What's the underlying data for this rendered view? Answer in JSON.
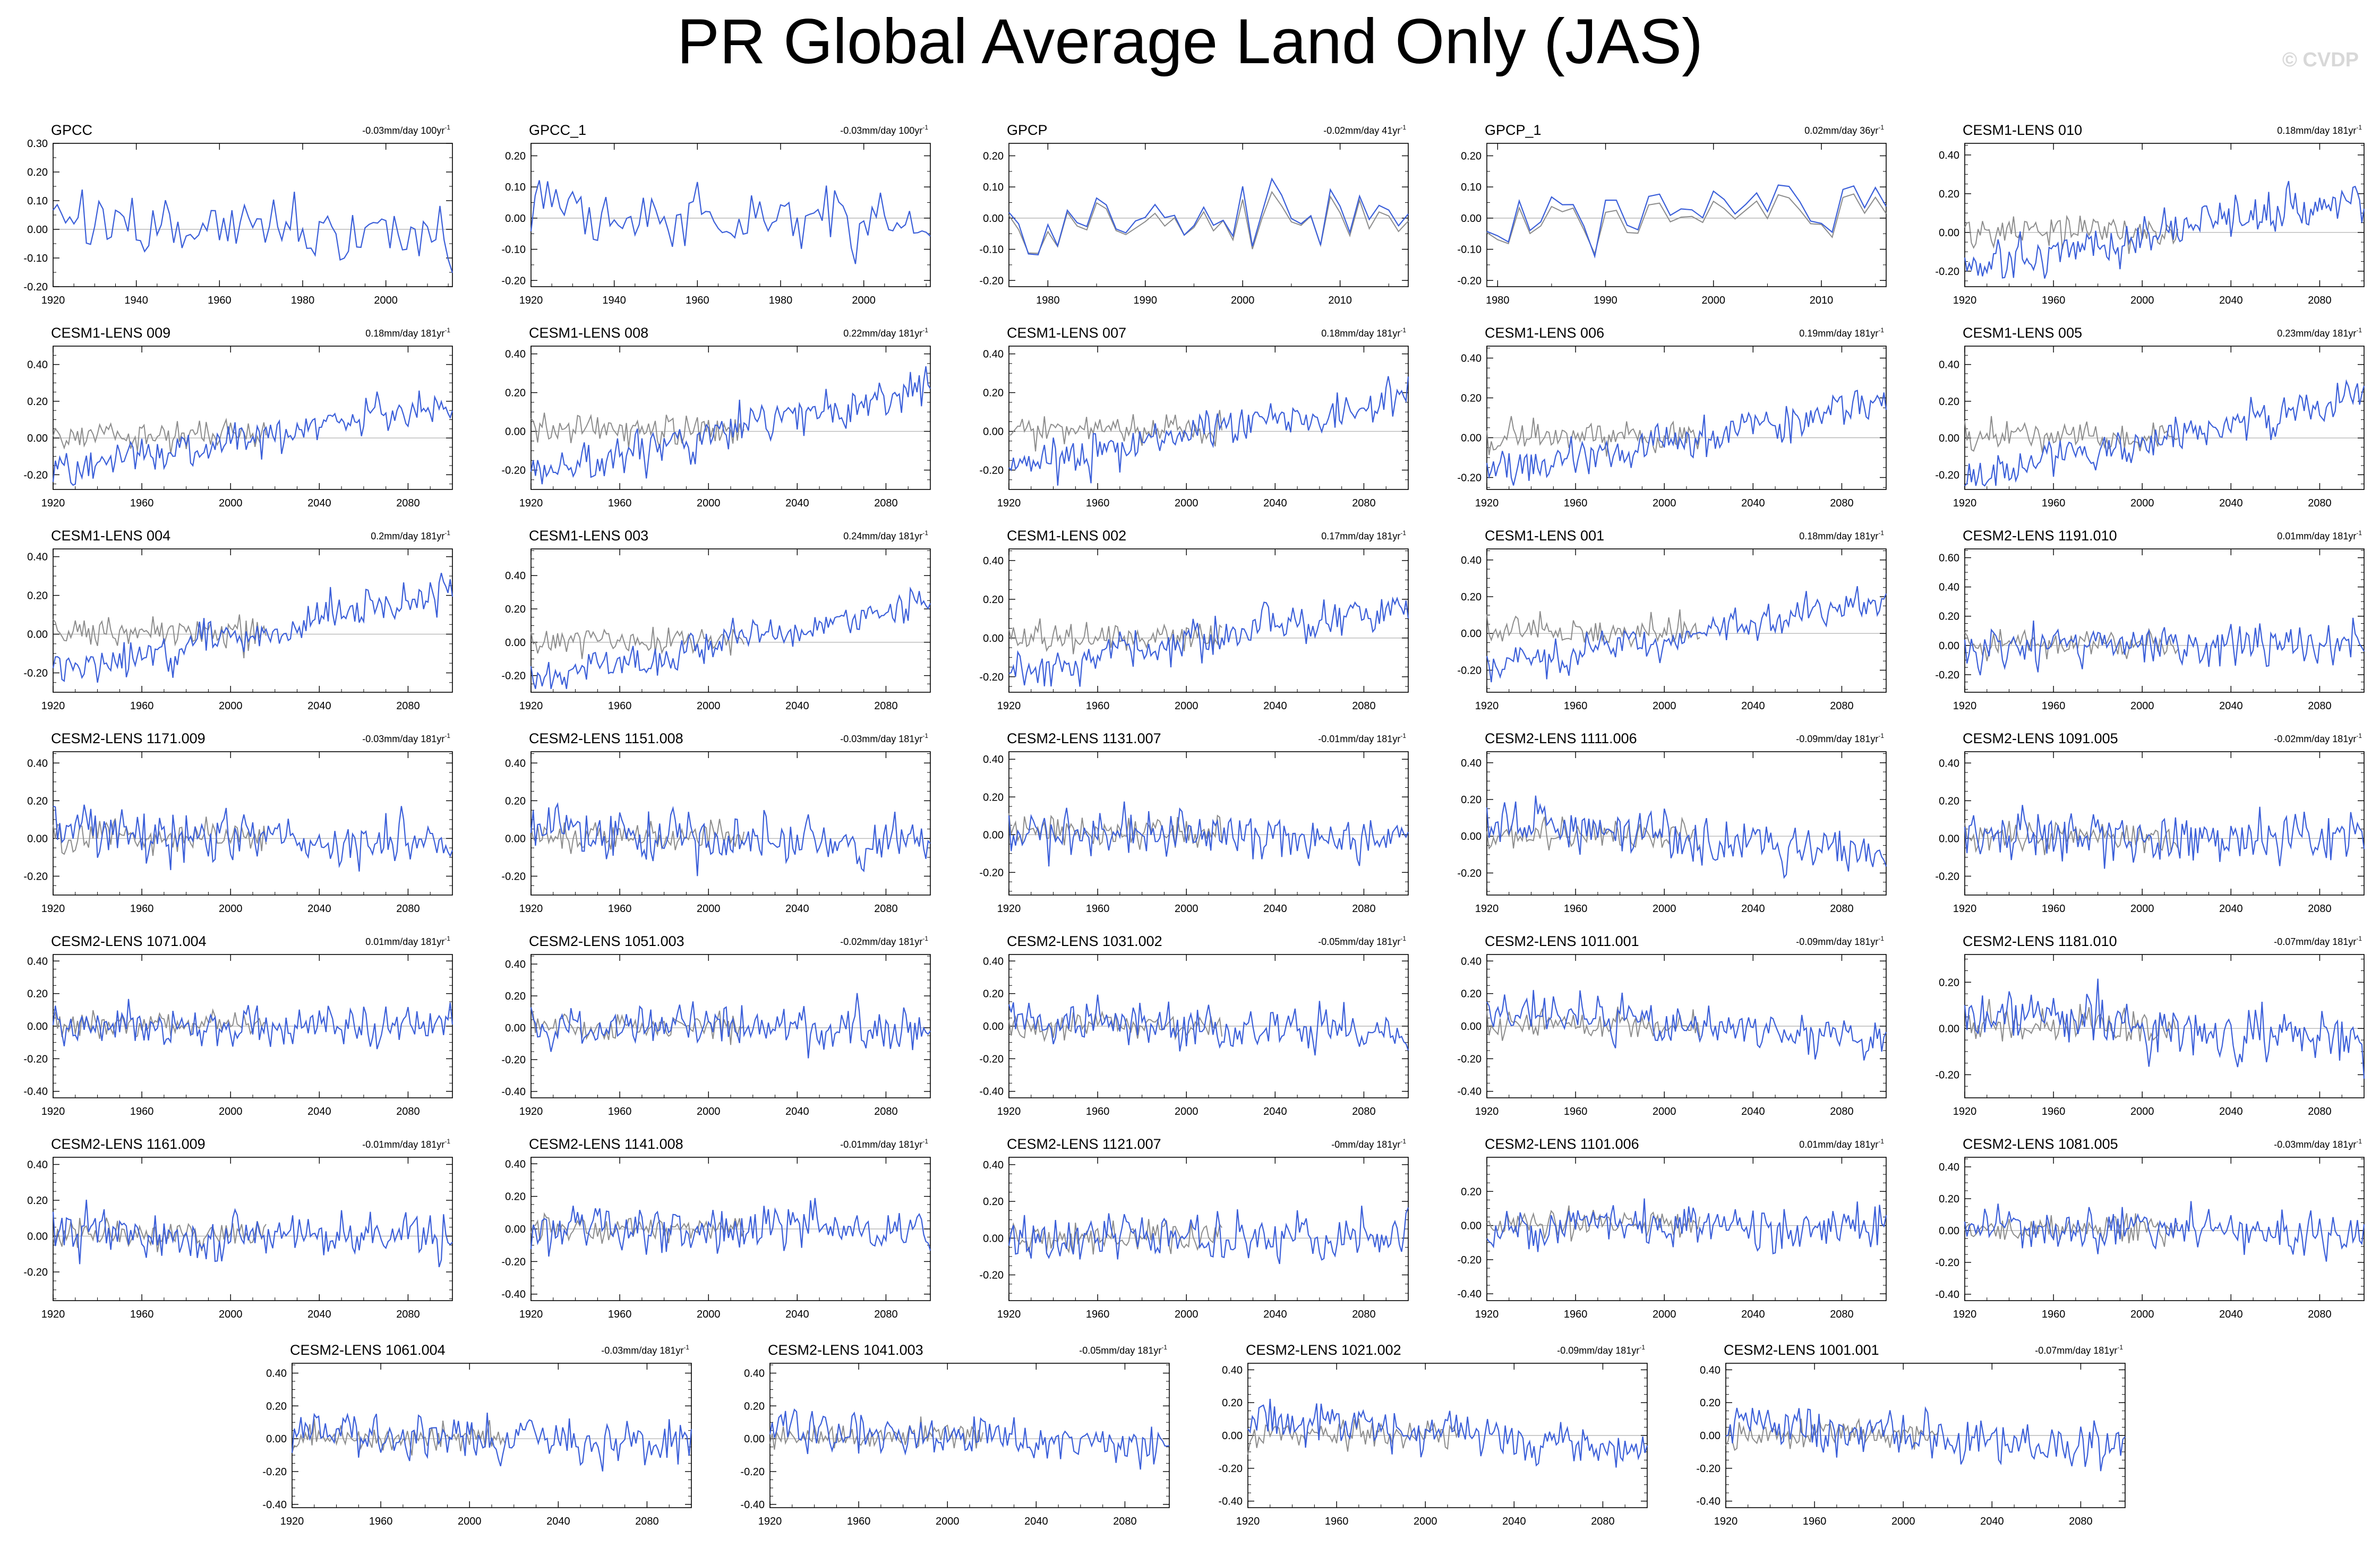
{
  "title": "PR Global Average Land Only (JAS)",
  "watermark": "© CVDP",
  "colors": {
    "model": "#3b5fd9",
    "obs": "#8c8c8c",
    "zero": "#b8b8b8",
    "axis": "#000000"
  },
  "chart_data": [
    {
      "type": "line",
      "title": "GPCC",
      "trend": "-0.03mm/day 100yr",
      "x_range": [
        1920,
        2016
      ],
      "xticks": [
        1920,
        1940,
        1960,
        1980,
        2000
      ],
      "ylim": [
        -0.2,
        0.3
      ],
      "yticks": [
        "-0.20",
        "-0.10",
        "0.00",
        "0.10",
        "0.20",
        "0.30"
      ],
      "amp": 0.1,
      "trend_total": -0.03,
      "obs_overlay": false,
      "seed": 1
    },
    {
      "type": "line",
      "title": "GPCC_1",
      "trend": "-0.03mm/day 100yr",
      "x_range": [
        1920,
        2016
      ],
      "xticks": [
        1920,
        1940,
        1960,
        1980,
        2000
      ],
      "ylim": [
        -0.22,
        0.24
      ],
      "yticks": [
        "-0.20",
        "-0.10",
        "0.00",
        "0.10",
        "0.20"
      ],
      "amp": 0.1,
      "trend_total": -0.03,
      "obs_overlay": false,
      "seed": 2
    },
    {
      "type": "line",
      "title": "GPCP",
      "trend": "-0.02mm/day 41yr",
      "x_range": [
        1976,
        2017
      ],
      "xticks": [
        1980,
        1990,
        2000,
        2010
      ],
      "ylim": [
        -0.22,
        0.24
      ],
      "yticks": [
        "-0.20",
        "-0.10",
        "0.00",
        "0.10",
        "0.20"
      ],
      "amp": 0.11,
      "trend_total": -0.02,
      "obs_overlay": true,
      "obs_close": true,
      "seed": 3
    },
    {
      "type": "line",
      "title": "GPCP_1",
      "trend": "0.02mm/day 36yr",
      "x_range": [
        1979,
        2016
      ],
      "xticks": [
        1980,
        1990,
        2000,
        2010
      ],
      "ylim": [
        -0.22,
        0.24
      ],
      "yticks": [
        "-0.20",
        "-0.10",
        "0.00",
        "0.10",
        "0.20"
      ],
      "amp": 0.11,
      "trend_total": 0.02,
      "obs_overlay": true,
      "obs_close": true,
      "seed": 4
    },
    {
      "type": "line",
      "title": "CESM1-LENS 010",
      "trend": "0.18mm/day 181yr",
      "x_range": [
        1920,
        2100
      ],
      "xticks": [
        1920,
        1960,
        2000,
        2040,
        2080
      ],
      "ylim": [
        -0.28,
        0.46
      ],
      "yticks": [
        "-0.20",
        "0.00",
        "0.20",
        "0.40"
      ],
      "amp": 0.1,
      "trend_total": 0.18,
      "obs_overlay": true,
      "seed": 5
    },
    {
      "type": "line",
      "title": "CESM1-LENS 009",
      "trend": "0.18mm/day 181yr",
      "x_range": [
        1920,
        2100
      ],
      "xticks": [
        1920,
        1960,
        2000,
        2040,
        2080
      ],
      "ylim": [
        -0.28,
        0.5
      ],
      "yticks": [
        "-0.20",
        "0.00",
        "0.20",
        "0.40"
      ],
      "amp": 0.1,
      "trend_total": 0.18,
      "obs_overlay": true,
      "seed": 6
    },
    {
      "type": "line",
      "title": "CESM1-LENS 008",
      "trend": "0.22mm/day 181yr",
      "x_range": [
        1920,
        2100
      ],
      "xticks": [
        1920,
        1960,
        2000,
        2040,
        2080
      ],
      "ylim": [
        -0.3,
        0.44
      ],
      "yticks": [
        "-0.20",
        "0.00",
        "0.20",
        "0.40"
      ],
      "amp": 0.1,
      "trend_total": 0.22,
      "obs_overlay": true,
      "seed": 7
    },
    {
      "type": "line",
      "title": "CESM1-LENS 007",
      "trend": "0.18mm/day 181yr",
      "x_range": [
        1920,
        2100
      ],
      "xticks": [
        1920,
        1960,
        2000,
        2040,
        2080
      ],
      "ylim": [
        -0.3,
        0.44
      ],
      "yticks": [
        "-0.20",
        "0.00",
        "0.20",
        "0.40"
      ],
      "amp": 0.1,
      "trend_total": 0.18,
      "obs_overlay": true,
      "seed": 8
    },
    {
      "type": "line",
      "title": "CESM1-LENS 006",
      "trend": "0.19mm/day 181yr",
      "x_range": [
        1920,
        2100
      ],
      "xticks": [
        1920,
        1960,
        2000,
        2040,
        2080
      ],
      "ylim": [
        -0.26,
        0.46
      ],
      "yticks": [
        "-0.20",
        "0.00",
        "0.20",
        "0.40"
      ],
      "amp": 0.1,
      "trend_total": 0.19,
      "obs_overlay": true,
      "seed": 9
    },
    {
      "type": "line",
      "title": "CESM1-LENS 005",
      "trend": "0.23mm/day 181yr",
      "x_range": [
        1920,
        2100
      ],
      "xticks": [
        1920,
        1960,
        2000,
        2040,
        2080
      ],
      "ylim": [
        -0.28,
        0.5
      ],
      "yticks": [
        "-0.20",
        "0.00",
        "0.20",
        "0.40"
      ],
      "amp": 0.1,
      "trend_total": 0.23,
      "obs_overlay": true,
      "seed": 10
    },
    {
      "type": "line",
      "title": "CESM1-LENS 004",
      "trend": "0.2mm/day 181yr",
      "x_range": [
        1920,
        2100
      ],
      "xticks": [
        1920,
        1960,
        2000,
        2040,
        2080
      ],
      "ylim": [
        -0.3,
        0.44
      ],
      "yticks": [
        "-0.20",
        "0.00",
        "0.20",
        "0.40"
      ],
      "amp": 0.1,
      "trend_total": 0.2,
      "obs_overlay": true,
      "seed": 11
    },
    {
      "type": "line",
      "title": "CESM1-LENS 003",
      "trend": "0.24mm/day 181yr",
      "x_range": [
        1920,
        2100
      ],
      "xticks": [
        1920,
        1960,
        2000,
        2040,
        2080
      ],
      "ylim": [
        -0.3,
        0.56
      ],
      "yticks": [
        "-0.20",
        "0.00",
        "0.20",
        "0.40"
      ],
      "amp": 0.1,
      "trend_total": 0.24,
      "obs_overlay": true,
      "seed": 12
    },
    {
      "type": "line",
      "title": "CESM1-LENS 002",
      "trend": "0.17mm/day 181yr",
      "x_range": [
        1920,
        2100
      ],
      "xticks": [
        1920,
        1960,
        2000,
        2040,
        2080
      ],
      "ylim": [
        -0.28,
        0.46
      ],
      "yticks": [
        "-0.20",
        "0.00",
        "0.20",
        "0.40"
      ],
      "amp": 0.1,
      "trend_total": 0.17,
      "obs_overlay": true,
      "seed": 13
    },
    {
      "type": "line",
      "title": "CESM1-LENS 001",
      "trend": "0.18mm/day 181yr",
      "x_range": [
        1920,
        2100
      ],
      "xticks": [
        1920,
        1960,
        2000,
        2040,
        2080
      ],
      "ylim": [
        -0.32,
        0.46
      ],
      "yticks": [
        "-0.20",
        "0.00",
        "0.20",
        "0.40"
      ],
      "amp": 0.1,
      "trend_total": 0.18,
      "obs_overlay": true,
      "seed": 14
    },
    {
      "type": "line",
      "title": "CESM2-LENS 1191.010",
      "trend": "0.01mm/day 181yr",
      "x_range": [
        1920,
        2100
      ],
      "xticks": [
        1920,
        1960,
        2000,
        2040,
        2080
      ],
      "ylim": [
        -0.32,
        0.66
      ],
      "yticks": [
        "-0.20",
        "0.00",
        "0.20",
        "0.40",
        "0.60"
      ],
      "amp": 0.13,
      "trend_total": 0.01,
      "obs_overlay": true,
      "seed": 15
    },
    {
      "type": "line",
      "title": "CESM2-LENS 1171.009",
      "trend": "-0.03mm/day 181yr",
      "x_range": [
        1920,
        2100
      ],
      "xticks": [
        1920,
        1960,
        2000,
        2040,
        2080
      ],
      "ylim": [
        -0.3,
        0.46
      ],
      "yticks": [
        "-0.20",
        "0.00",
        "0.20",
        "0.40"
      ],
      "amp": 0.13,
      "trend_total": -0.03,
      "obs_overlay": true,
      "seed": 16
    },
    {
      "type": "line",
      "title": "CESM2-LENS 1151.008",
      "trend": "-0.03mm/day 181yr",
      "x_range": [
        1920,
        2100
      ],
      "xticks": [
        1920,
        1960,
        2000,
        2040,
        2080
      ],
      "ylim": [
        -0.3,
        0.46
      ],
      "yticks": [
        "-0.20",
        "0.00",
        "0.20",
        "0.40"
      ],
      "amp": 0.13,
      "trend_total": -0.03,
      "obs_overlay": true,
      "seed": 17
    },
    {
      "type": "line",
      "title": "CESM2-LENS 1131.007",
      "trend": "-0.01mm/day 181yr",
      "x_range": [
        1920,
        2100
      ],
      "xticks": [
        1920,
        1960,
        2000,
        2040,
        2080
      ],
      "ylim": [
        -0.32,
        0.44
      ],
      "yticks": [
        "-0.20",
        "0.00",
        "0.20",
        "0.40"
      ],
      "amp": 0.13,
      "trend_total": -0.01,
      "obs_overlay": true,
      "seed": 18
    },
    {
      "type": "line",
      "title": "CESM2-LENS 1111.006",
      "trend": "-0.09mm/day 181yr",
      "x_range": [
        1920,
        2100
      ],
      "xticks": [
        1920,
        1960,
        2000,
        2040,
        2080
      ],
      "ylim": [
        -0.32,
        0.46
      ],
      "yticks": [
        "-0.20",
        "0.00",
        "0.20",
        "0.40"
      ],
      "amp": 0.13,
      "trend_total": -0.09,
      "obs_overlay": true,
      "seed": 19
    },
    {
      "type": "line",
      "title": "CESM2-LENS 1091.005",
      "trend": "-0.02mm/day 181yr",
      "x_range": [
        1920,
        2100
      ],
      "xticks": [
        1920,
        1960,
        2000,
        2040,
        2080
      ],
      "ylim": [
        -0.3,
        0.46
      ],
      "yticks": [
        "-0.20",
        "0.00",
        "0.20",
        "0.40"
      ],
      "amp": 0.13,
      "trend_total": -0.02,
      "obs_overlay": true,
      "seed": 20
    },
    {
      "type": "line",
      "title": "CESM2-LENS 1071.004",
      "trend": "0.01mm/day 181yr",
      "x_range": [
        1920,
        2100
      ],
      "xticks": [
        1920,
        1960,
        2000,
        2040,
        2080
      ],
      "ylim": [
        -0.44,
        0.44
      ],
      "yticks": [
        "-0.40",
        "-0.20",
        "0.00",
        "0.20",
        "0.40"
      ],
      "amp": 0.13,
      "trend_total": 0.01,
      "obs_overlay": true,
      "seed": 21
    },
    {
      "type": "line",
      "title": "CESM2-LENS 1051.003",
      "trend": "-0.02mm/day 181yr",
      "x_range": [
        1920,
        2100
      ],
      "xticks": [
        1920,
        1960,
        2000,
        2040,
        2080
      ],
      "ylim": [
        -0.44,
        0.46
      ],
      "yticks": [
        "-0.40",
        "-0.20",
        "0.00",
        "0.20",
        "0.40"
      ],
      "amp": 0.13,
      "trend_total": -0.02,
      "obs_overlay": true,
      "seed": 22
    },
    {
      "type": "line",
      "title": "CESM2-LENS 1031.002",
      "trend": "-0.05mm/day 181yr",
      "x_range": [
        1920,
        2100
      ],
      "xticks": [
        1920,
        1960,
        2000,
        2040,
        2080
      ],
      "ylim": [
        -0.44,
        0.44
      ],
      "yticks": [
        "-0.40",
        "-0.20",
        "0.00",
        "0.20",
        "0.40"
      ],
      "amp": 0.13,
      "trend_total": -0.05,
      "obs_overlay": true,
      "seed": 23
    },
    {
      "type": "line",
      "title": "CESM2-LENS 1011.001",
      "trend": "-0.09mm/day 181yr",
      "x_range": [
        1920,
        2100
      ],
      "xticks": [
        1920,
        1960,
        2000,
        2040,
        2080
      ],
      "ylim": [
        -0.44,
        0.44
      ],
      "yticks": [
        "-0.40",
        "-0.20",
        "0.00",
        "0.20",
        "0.40"
      ],
      "amp": 0.13,
      "trend_total": -0.09,
      "obs_overlay": true,
      "seed": 24
    },
    {
      "type": "line",
      "title": "CESM2-LENS 1181.010",
      "trend": "-0.07mm/day 181yr",
      "x_range": [
        1920,
        2100
      ],
      "xticks": [
        1920,
        1960,
        2000,
        2040,
        2080
      ],
      "ylim": [
        -0.3,
        0.32
      ],
      "yticks": [
        "-0.20",
        "0.00",
        "0.20"
      ],
      "amp": 0.12,
      "trend_total": -0.07,
      "obs_overlay": true,
      "seed": 25
    },
    {
      "type": "line",
      "title": "CESM2-LENS 1161.009",
      "trend": "-0.01mm/day 181yr",
      "x_range": [
        1920,
        2100
      ],
      "xticks": [
        1920,
        1960,
        2000,
        2040,
        2080
      ],
      "ylim": [
        -0.36,
        0.44
      ],
      "yticks": [
        "-0.20",
        "0.00",
        "0.20",
        "0.40"
      ],
      "amp": 0.13,
      "trend_total": -0.01,
      "obs_overlay": true,
      "seed": 26
    },
    {
      "type": "line",
      "title": "CESM2-LENS 1141.008",
      "trend": "-0.01mm/day 181yr",
      "x_range": [
        1920,
        2100
      ],
      "xticks": [
        1920,
        1960,
        2000,
        2040,
        2080
      ],
      "ylim": [
        -0.44,
        0.44
      ],
      "yticks": [
        "-0.40",
        "-0.20",
        "0.00",
        "0.20",
        "0.40"
      ],
      "amp": 0.13,
      "trend_total": -0.01,
      "obs_overlay": true,
      "seed": 27
    },
    {
      "type": "line",
      "title": "CESM2-LENS 1121.007",
      "trend": "-0mm/day 181yr",
      "x_range": [
        1920,
        2100
      ],
      "xticks": [
        1920,
        1960,
        2000,
        2040,
        2080
      ],
      "ylim": [
        -0.34,
        0.44
      ],
      "yticks": [
        "-0.20",
        "0.00",
        "0.20",
        "0.40"
      ],
      "amp": 0.13,
      "trend_total": 0.0,
      "obs_overlay": true,
      "seed": 28
    },
    {
      "type": "line",
      "title": "CESM2-LENS 1101.006",
      "trend": "0.01mm/day 181yr",
      "x_range": [
        1920,
        2100
      ],
      "xticks": [
        1920,
        1960,
        2000,
        2040,
        2080
      ],
      "ylim": [
        -0.44,
        0.4
      ],
      "yticks": [
        "-0.40",
        "-0.20",
        "0.00",
        "0.20"
      ],
      "amp": 0.13,
      "trend_total": 0.01,
      "obs_overlay": true,
      "seed": 29
    },
    {
      "type": "line",
      "title": "CESM2-LENS 1081.005",
      "trend": "-0.03mm/day 181yr",
      "x_range": [
        1920,
        2100
      ],
      "xticks": [
        1920,
        1960,
        2000,
        2040,
        2080
      ],
      "ylim": [
        -0.44,
        0.46
      ],
      "yticks": [
        "-0.40",
        "-0.20",
        "0.00",
        "0.20",
        "0.40"
      ],
      "amp": 0.13,
      "trend_total": -0.03,
      "obs_overlay": true,
      "seed": 30
    },
    {
      "type": "line",
      "title": "CESM2-LENS 1061.004",
      "trend": "-0.03mm/day 181yr",
      "x_range": [
        1920,
        2100
      ],
      "xticks": [
        1920,
        1960,
        2000,
        2040,
        2080
      ],
      "ylim": [
        -0.42,
        0.46
      ],
      "yticks": [
        "-0.40",
        "-0.20",
        "0.00",
        "0.20",
        "0.40"
      ],
      "amp": 0.13,
      "trend_total": -0.03,
      "obs_overlay": true,
      "seed": 31
    },
    {
      "type": "line",
      "title": "CESM2-LENS 1041.003",
      "trend": "-0.05mm/day 181yr",
      "x_range": [
        1920,
        2100
      ],
      "xticks": [
        1920,
        1960,
        2000,
        2040,
        2080
      ],
      "ylim": [
        -0.42,
        0.46
      ],
      "yticks": [
        "-0.40",
        "-0.20",
        "0.00",
        "0.20",
        "0.40"
      ],
      "amp": 0.13,
      "trend_total": -0.05,
      "obs_overlay": true,
      "seed": 32
    },
    {
      "type": "line",
      "title": "CESM2-LENS 1021.002",
      "trend": "-0.09mm/day 181yr",
      "x_range": [
        1920,
        2100
      ],
      "xticks": [
        1920,
        1960,
        2000,
        2040,
        2080
      ],
      "ylim": [
        -0.44,
        0.44
      ],
      "yticks": [
        "-0.40",
        "-0.20",
        "0.00",
        "0.20",
        "0.40"
      ],
      "amp": 0.13,
      "trend_total": -0.09,
      "obs_overlay": true,
      "seed": 33
    },
    {
      "type": "line",
      "title": "CESM2-LENS 1001.001",
      "trend": "-0.07mm/day 181yr",
      "x_range": [
        1920,
        2100
      ],
      "xticks": [
        1920,
        1960,
        2000,
        2040,
        2080
      ],
      "ylim": [
        -0.44,
        0.44
      ],
      "yticks": [
        "-0.40",
        "-0.20",
        "0.00",
        "0.20",
        "0.40"
      ],
      "amp": 0.13,
      "trend_total": -0.07,
      "obs_overlay": true,
      "seed": 34
    }
  ]
}
